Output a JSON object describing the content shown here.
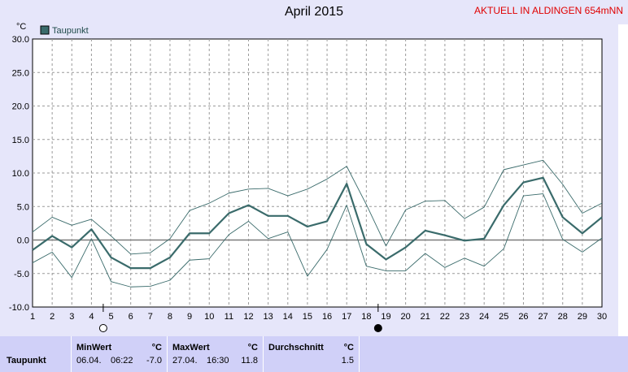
{
  "header": {
    "title": "April 2015",
    "station": "AKTUELL IN ALDINGEN 654mNN"
  },
  "chart_data": {
    "type": "line",
    "title": "April 2015",
    "ylabel": "°C",
    "ylim": [
      -10,
      30
    ],
    "yticks": [
      "30.0",
      "25.0",
      "20.0",
      "15.0",
      "10.0",
      "5.0",
      "0.0",
      "-5.0",
      "-10.0"
    ],
    "categories": [
      "1",
      "2",
      "3",
      "4",
      "5",
      "6",
      "7",
      "8",
      "9",
      "10",
      "11",
      "12",
      "13",
      "14",
      "15",
      "16",
      "17",
      "18",
      "19",
      "20",
      "21",
      "22",
      "23",
      "24",
      "25",
      "26",
      "27",
      "28",
      "29",
      "30"
    ],
    "legend": [
      "Taupunkt"
    ],
    "series": [
      {
        "name": "Taupunkt",
        "values": [
          -1.5,
          0.6,
          -1.1,
          1.6,
          -2.6,
          -4.2,
          -4.2,
          -2.6,
          1.0,
          1.0,
          4.0,
          5.2,
          3.6,
          3.6,
          2.0,
          2.8,
          8.4,
          -0.6,
          -2.9,
          -1.1,
          1.4,
          0.7,
          -0.1,
          0.2,
          5.2,
          8.6,
          9.3,
          3.4,
          1.0,
          3.4
        ]
      },
      {
        "values": [
          1.2,
          3.4,
          2.2,
          3.1,
          0.6,
          -2.1,
          -1.9,
          0.2,
          4.4,
          5.5,
          7.0,
          7.6,
          7.7,
          6.6,
          7.6,
          9.1,
          11.0,
          5.3,
          -0.9,
          4.5,
          5.8,
          5.9,
          3.2,
          4.9,
          10.5,
          11.2,
          11.9,
          8.3,
          4.0,
          5.5
        ]
      },
      {
        "values": [
          -3.4,
          -1.8,
          -5.6,
          0.2,
          -6.2,
          -7.0,
          -6.9,
          -6.0,
          -3.0,
          -2.8,
          0.8,
          2.8,
          0.2,
          1.2,
          -5.4,
          -1.4,
          5.2,
          -3.9,
          -4.6,
          -4.6,
          -2.0,
          -4.1,
          -2.7,
          -3.9,
          -1.3,
          6.6,
          6.9,
          0.1,
          -1.8,
          0.3
        ]
      }
    ],
    "grid": true,
    "legend_position": "top-left"
  },
  "moon_markers": [
    {
      "day": "4",
      "symbol": "○"
    },
    {
      "day": "18",
      "symbol": "●"
    }
  ],
  "stats": {
    "row_label": "Taupunkt",
    "min": {
      "label": "MinWert",
      "unit": "°C",
      "date": "06.04.",
      "time": "06:22",
      "value": "-7.0"
    },
    "max": {
      "label": "MaxWert",
      "unit": "°C",
      "date": "27.04.",
      "time": "16:30",
      "value": "11.8"
    },
    "avg": {
      "label": "Durchschnitt",
      "unit": "°C",
      "value": "1.5"
    }
  },
  "colors": {
    "series": "#3a6b6b",
    "grid": "#9a9a9a",
    "zero_line": "#7a7a7a",
    "plot_bg": "#ffffff",
    "page_bg": "#e6e6fa",
    "station": "#e00000"
  }
}
